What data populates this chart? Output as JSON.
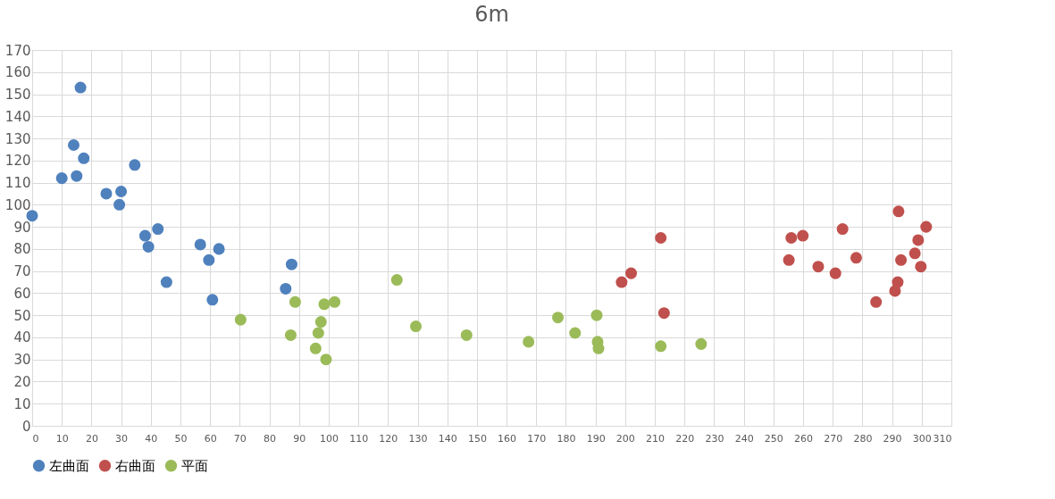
{
  "chart_data": {
    "type": "scatter",
    "title": "6m",
    "marker": "circle",
    "grid": true,
    "legend": "bottom",
    "xlim": [
      0,
      310
    ],
    "xticks": [
      0,
      10,
      20,
      30,
      40,
      50,
      60,
      70,
      80,
      90,
      100,
      110,
      120,
      130,
      140,
      150,
      160,
      170,
      180,
      190,
      200,
      210,
      220,
      230,
      240,
      250,
      260,
      270,
      280,
      290,
      300,
      310
    ],
    "ylim": [
      0,
      170
    ],
    "yticks": [
      0,
      10,
      20,
      30,
      40,
      50,
      60,
      70,
      80,
      90,
      100,
      110,
      120,
      130,
      140,
      150,
      160,
      170
    ],
    "series": [
      {
        "name": "左曲面",
        "color": "#4f81bd",
        "x": [
          0,
          10,
          14,
          15,
          16.3,
          17.4,
          25,
          29.4,
          30,
          34.6,
          38.1,
          39.2,
          42.4,
          45.3,
          56.7,
          59.6,
          60.8,
          63,
          85.5,
          87.5
        ],
        "values": [
          95,
          112,
          127,
          113,
          153,
          121,
          105,
          100,
          106,
          118,
          86,
          81,
          89,
          65,
          82,
          75,
          57,
          80,
          62,
          73
        ]
      },
      {
        "name": "右曲面",
        "color": "#c0504d",
        "x": [
          198.8,
          202,
          212,
          213.1,
          255.2,
          256,
          259.9,
          265.1,
          270.9,
          273.3,
          277.9,
          284.6,
          291,
          291.9,
          292.2,
          293,
          297.7,
          298.8,
          299.7,
          301.5
        ],
        "values": [
          65,
          69,
          85,
          51,
          75,
          85,
          86,
          72,
          69,
          89,
          76,
          56,
          61,
          65,
          97,
          75,
          78,
          84,
          72,
          90
        ]
      },
      {
        "name": "平面",
        "color": "#9bbb59",
        "x": [
          70.3,
          87.2,
          88.7,
          95.6,
          96.5,
          97.4,
          98.5,
          99.1,
          102,
          123,
          129.4,
          146.5,
          167.4,
          177.3,
          183.1,
          190.4,
          190.7,
          191,
          212,
          225.6
        ],
        "values": [
          48,
          41,
          56,
          35,
          42,
          47,
          55,
          30,
          56,
          66,
          45,
          41,
          38,
          49,
          42,
          50,
          38,
          35,
          36,
          37
        ]
      }
    ]
  }
}
